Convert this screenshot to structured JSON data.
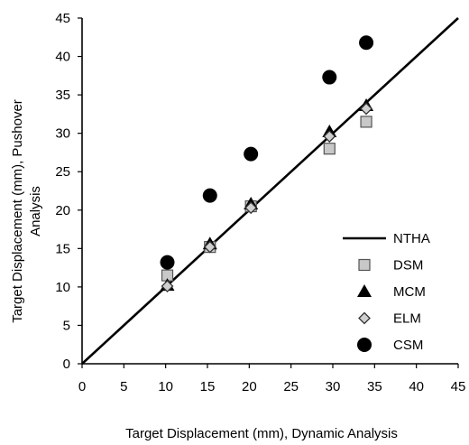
{
  "chart_data": {
    "type": "scatter",
    "xlabel": "Target Displacement (mm), Dynamic Analysis",
    "ylabel_lines": [
      "Target Displacement (mm), Pushover",
      "Analysis"
    ],
    "xlim": [
      0,
      45
    ],
    "ylim": [
      0,
      45
    ],
    "xticks": [
      0,
      5,
      10,
      15,
      20,
      25,
      30,
      35,
      40,
      45
    ],
    "yticks": [
      0,
      5,
      10,
      15,
      20,
      25,
      30,
      35,
      40,
      45
    ],
    "xtick_labels": [
      "0",
      "5",
      "10",
      "15",
      "20",
      "25",
      "30",
      "35",
      "40",
      "45"
    ],
    "ytick_labels": [
      "0",
      "5",
      "10",
      "15",
      "20",
      "25",
      "30",
      "35",
      "40",
      "45"
    ],
    "grid": false,
    "legend_position": "bottom-right",
    "series": [
      {
        "name": "NTHA",
        "kind": "line",
        "marker": "none",
        "color": "#000000",
        "x": [
          0,
          45
        ],
        "y": [
          0,
          45
        ]
      },
      {
        "name": "DSM",
        "kind": "scatter",
        "marker": "square",
        "color": "#c8c8c8",
        "x": [
          10.2,
          15.3,
          20.2,
          29.6,
          34.0
        ],
        "y": [
          11.5,
          15.2,
          20.5,
          28.0,
          31.5
        ]
      },
      {
        "name": "MCM",
        "kind": "scatter",
        "marker": "triangle",
        "color": "#000000",
        "x": [
          10.2,
          15.3,
          20.2,
          29.6,
          34.0
        ],
        "y": [
          10.2,
          15.6,
          20.8,
          30.2,
          33.6
        ]
      },
      {
        "name": "ELM",
        "kind": "scatter",
        "marker": "diamond",
        "color": "#d0d0d0",
        "x": [
          10.2,
          15.3,
          20.2,
          29.6,
          34.0
        ],
        "y": [
          10.1,
          15.2,
          20.3,
          29.6,
          33.2
        ]
      },
      {
        "name": "CSM",
        "kind": "scatter",
        "marker": "circle",
        "color": "#000000",
        "x": [
          10.2,
          15.3,
          20.2,
          29.6,
          34.0
        ],
        "y": [
          13.2,
          21.9,
          27.3,
          37.3,
          41.8
        ]
      }
    ]
  }
}
